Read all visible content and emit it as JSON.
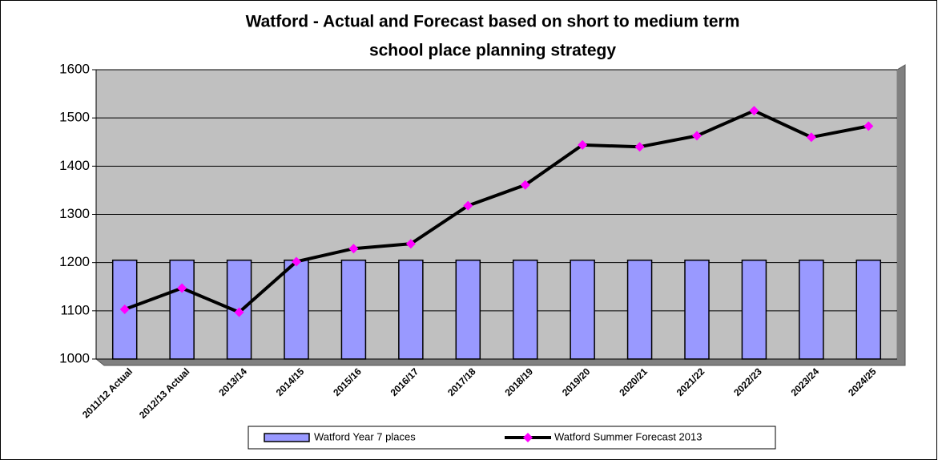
{
  "chart_data": {
    "type": "combo",
    "title": [
      "Watford - Actual and Forecast based on short to medium term",
      "school place planning strategy"
    ],
    "categories": [
      "2011/12 Actual",
      "2012/13 Actual",
      "2013/14",
      "2014/15",
      "2015/16",
      "2016/17",
      "2017/18",
      "2018/19",
      "2019/20",
      "2020/21",
      "2021/22",
      "2022/23",
      "2023/24",
      "2024/25"
    ],
    "series": [
      {
        "name": "Watford Year 7 places",
        "type": "bar",
        "color": "#9999ff",
        "values": [
          1205,
          1205,
          1205,
          1205,
          1205,
          1205,
          1205,
          1205,
          1205,
          1205,
          1205,
          1205,
          1205,
          1205
        ]
      },
      {
        "name": "Watford Summer Forecast 2013",
        "type": "line",
        "color": "#000000",
        "marker_color": "#ff00ff",
        "values": [
          1103,
          1147,
          1097,
          1202,
          1229,
          1239,
          1318,
          1361,
          1444,
          1440,
          1463,
          1515,
          1460,
          1483
        ]
      }
    ],
    "ylim": [
      1000,
      1600
    ],
    "yticks": [
      1000,
      1100,
      1200,
      1300,
      1400,
      1500,
      1600
    ],
    "grid": true,
    "legend": "bottom"
  }
}
